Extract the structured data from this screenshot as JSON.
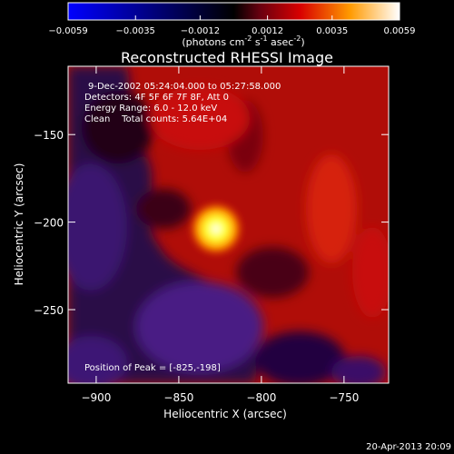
{
  "colorbar": {
    "ticks": [
      "-0.0059",
      "-0.0035",
      "-0.0012",
      "0.0012",
      "0.0035",
      "0.0059"
    ],
    "range": [
      -0.0059,
      0.0059
    ],
    "unit_prefix": "(photons cm",
    "unit_exp1": "-2",
    "unit_mid": " s",
    "unit_exp2": "-1",
    "unit_mid2": " asec",
    "unit_exp3": "-2",
    "unit_suffix": ")"
  },
  "chart_data": {
    "type": "heatmap",
    "title": "Reconstructed RHESSI Image",
    "xlabel": "Heliocentric X (arcsec)",
    "ylabel": "Heliocentric Y (arcsec)",
    "xlim": [
      -917,
      -723
    ],
    "ylim": [
      -292,
      -111
    ],
    "x_ticks": [
      -900,
      -850,
      -800,
      -750
    ],
    "y_ticks": [
      -150,
      -200,
      -250
    ],
    "colormap": [
      "#0000ff",
      "#000000",
      "#ff0000",
      "#ffff00",
      "#ffffff"
    ],
    "peak": {
      "x": -825,
      "y": -198,
      "value": 0.0059
    },
    "annotations": [
      "9-Dec-2002 05:24:04.000 to 05:27:58.000",
      "Detectors: 4F 5F 6F 7F 8F, Att 0",
      "Energy Range: 6.0 - 12.0 keV",
      "Clean    Total counts: 5.64E+04"
    ],
    "peak_label": "Position of Peak = [-825,-198]"
  },
  "footer": {
    "timestamp": "20-Apr-2013 20:09"
  }
}
